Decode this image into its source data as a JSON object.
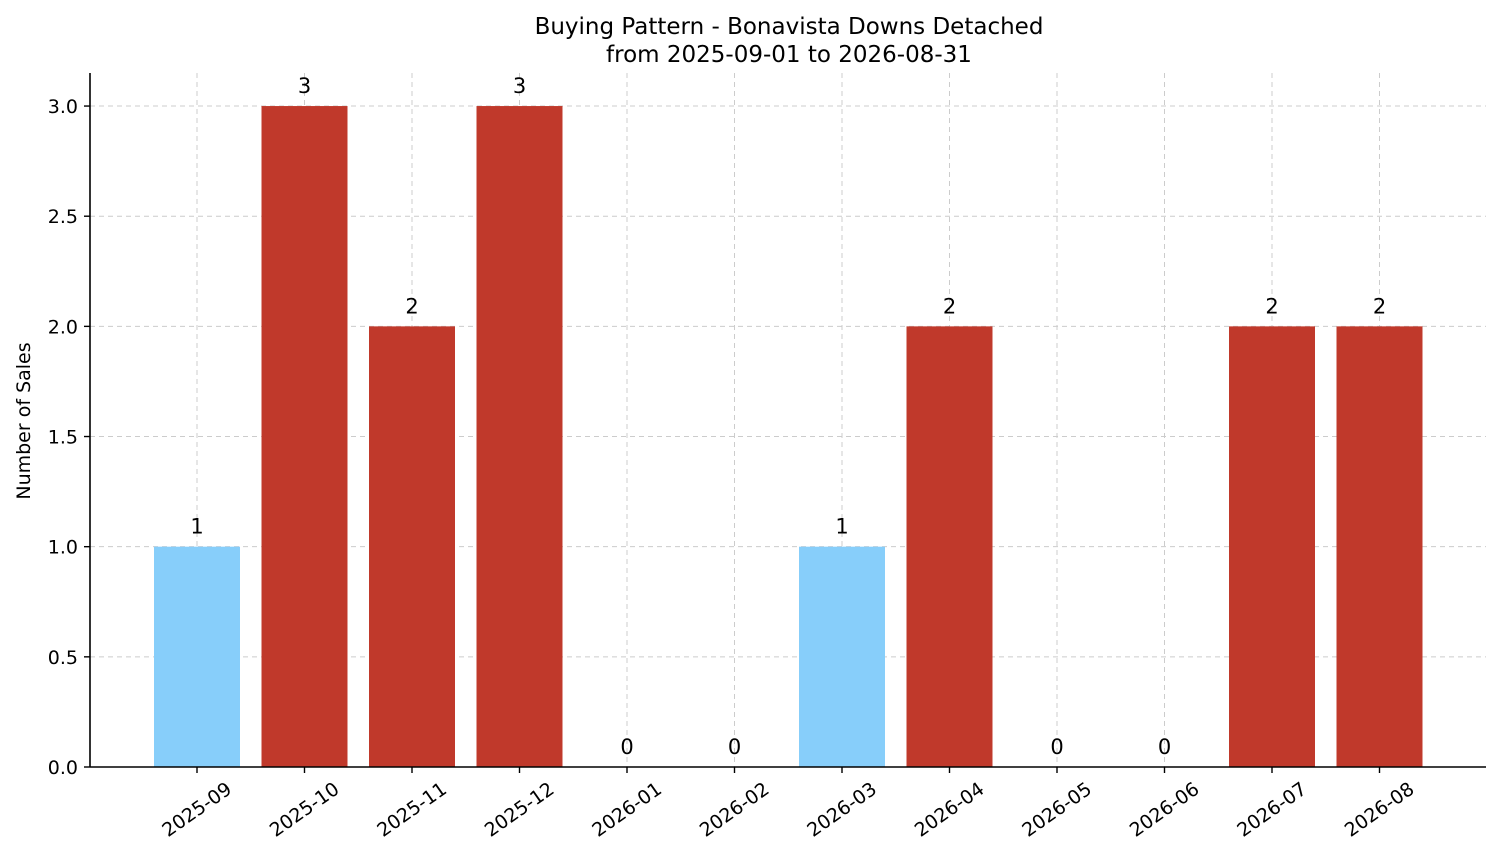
{
  "chart_data": {
    "type": "bar",
    "title": "Buying Pattern - Bonavista Downs Detached",
    "subtitle": "from 2025-09-01 to 2026-08-31",
    "xlabel": "",
    "ylabel": "Number of Sales",
    "categories": [
      "2025-09",
      "2025-10",
      "2025-11",
      "2025-12",
      "2026-01",
      "2026-02",
      "2026-03",
      "2026-04",
      "2026-05",
      "2026-06",
      "2026-07",
      "2026-08"
    ],
    "values": [
      1,
      3,
      2,
      3,
      0,
      0,
      1,
      2,
      0,
      0,
      2,
      2
    ],
    "data_labels": [
      "1",
      "3",
      "2",
      "3",
      "0",
      "0",
      "1",
      "2",
      "0",
      "0",
      "2",
      "2"
    ],
    "ylim": [
      0,
      3.15
    ],
    "yticks": [
      0.0,
      0.5,
      1.0,
      1.5,
      2.0,
      2.5,
      3.0
    ],
    "ytick_labels": [
      "0.0",
      "0.5",
      "1.0",
      "1.5",
      "2.0",
      "2.5",
      "3.0"
    ],
    "grid": true,
    "colors": {
      "low": "#87cefa",
      "high": "#c0392b",
      "grid": "#cccccc",
      "axis": "#000000"
    },
    "bar_colors": [
      "low",
      "high",
      "high",
      "high",
      "high",
      "high",
      "low",
      "high",
      "high",
      "high",
      "high",
      "high"
    ]
  }
}
